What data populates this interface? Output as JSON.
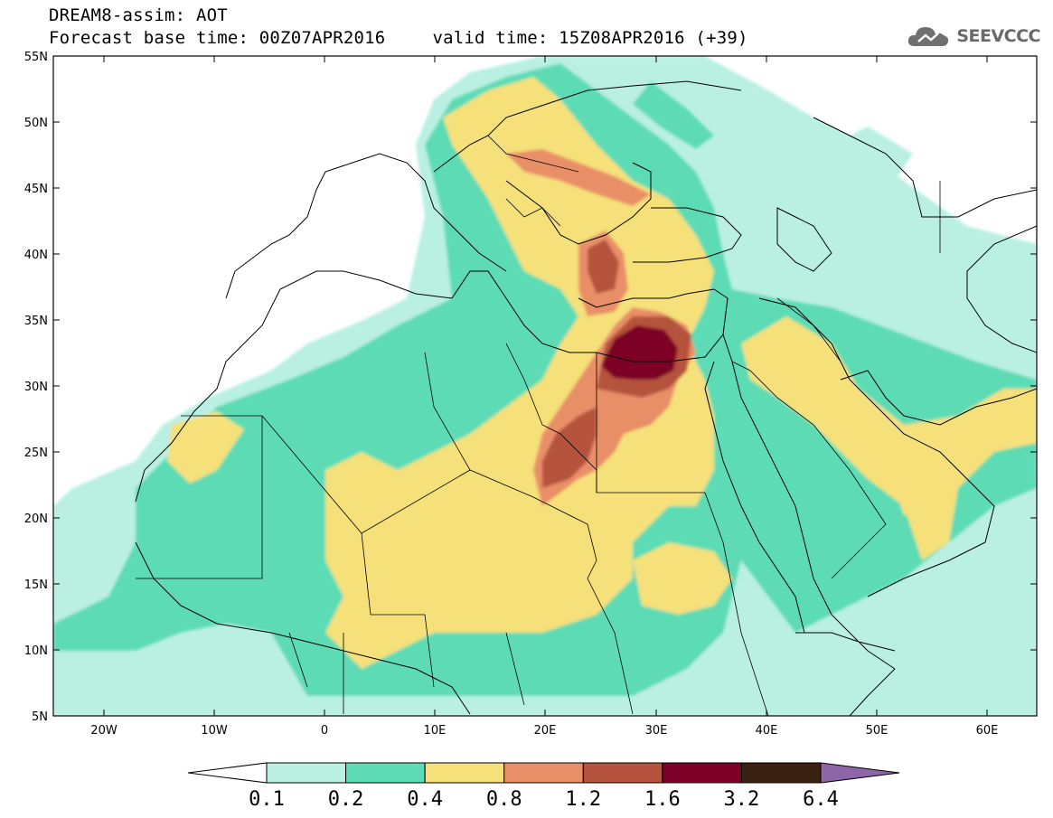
{
  "title": {
    "line1": "DREAM8-assim: AOT",
    "base_time": "Forecast base time: 00Z07APR2016",
    "valid_time": "valid time: 15Z08APR2016 (+39)"
  },
  "logo": {
    "text": "SEEVCCC",
    "icon": "cloud-icon"
  },
  "map": {
    "lon_labels": [
      "20W",
      "10W",
      "0",
      "10E",
      "20E",
      "30E",
      "40E",
      "50E",
      "60E"
    ],
    "lat_labels": [
      "55N",
      "50N",
      "45N",
      "40N",
      "35N",
      "30N",
      "25N",
      "20N",
      "15N",
      "10N",
      "5N"
    ]
  },
  "colorbar": {
    "labels": [
      "0.1",
      "0.2",
      "0.4",
      "0.8",
      "1.2",
      "1.6",
      "3.2",
      "6.4"
    ],
    "colors": [
      "#ffffff",
      "#b9f0e2",
      "#5ddbb5",
      "#f5e07a",
      "#e98f67",
      "#b5533e",
      "#7d0028",
      "#3a2010",
      "#8e66a8"
    ]
  }
}
